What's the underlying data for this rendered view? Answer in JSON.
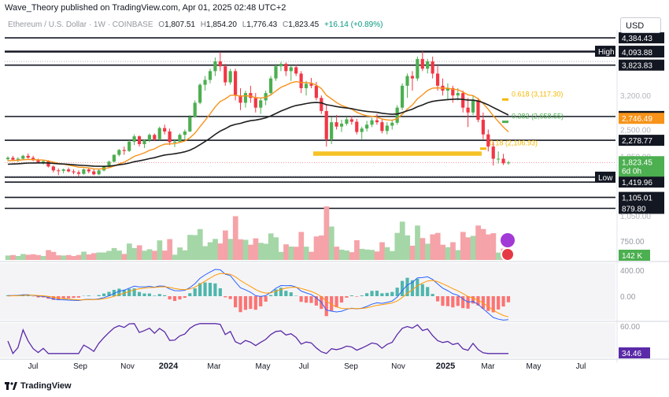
{
  "header": {
    "publisher": "Wave_Theory published on TradingView.com, Apr 01, 2025 02:48 UTC+2",
    "symbol": "Ethereum / U.S. Dollar · 1W · COINBASE",
    "open_label": "O",
    "open": "1,807.51",
    "high_label": "H",
    "high": "1,854.20",
    "low_label": "L",
    "low": "1,776.43",
    "close_label": "C",
    "close": "1,823.45",
    "change": "+16.14 (+0.89%)"
  },
  "currency_button": "USD",
  "footer": {
    "brand": "TradingView"
  },
  "colors": {
    "up": "#4caf50",
    "down": "#f23645",
    "ema50": "#f7931a",
    "ema200": "#1e1e1e",
    "macd": "#2962ff",
    "signal": "#ff9800",
    "rsi": "#5b2aa8",
    "fib": "#f5b800",
    "price_badge": "#4caf50",
    "volume_up": "#a5d6a7",
    "volume_down": "#f5a3a8"
  },
  "chart_data": {
    "type": "candlestick",
    "time_axis": [
      "Jul",
      "Sep",
      "Nov",
      "2024",
      "Mar",
      "May",
      "Jul",
      "Sep",
      "Nov",
      "2025",
      "Mar",
      "May",
      "Jul"
    ],
    "price_scale_ticks": [
      "1,950.00",
      "2,500.00",
      "3,200.00",
      "1,950.00"
    ],
    "candles": [
      {
        "o": 1890,
        "h": 1950,
        "l": 1850,
        "c": 1920
      },
      {
        "o": 1920,
        "h": 1960,
        "l": 1860,
        "c": 1880
      },
      {
        "o": 1880,
        "h": 1930,
        "l": 1830,
        "c": 1900
      },
      {
        "o": 1900,
        "h": 1980,
        "l": 1880,
        "c": 1960
      },
      {
        "o": 1960,
        "h": 2010,
        "l": 1900,
        "c": 1920
      },
      {
        "o": 1920,
        "h": 1960,
        "l": 1850,
        "c": 1870
      },
      {
        "o": 1870,
        "h": 1900,
        "l": 1800,
        "c": 1830
      },
      {
        "o": 1830,
        "h": 1880,
        "l": 1780,
        "c": 1850
      },
      {
        "o": 1850,
        "h": 1870,
        "l": 1720,
        "c": 1740
      },
      {
        "o": 1740,
        "h": 1760,
        "l": 1620,
        "c": 1660
      },
      {
        "o": 1660,
        "h": 1700,
        "l": 1560,
        "c": 1650
      },
      {
        "o": 1650,
        "h": 1700,
        "l": 1600,
        "c": 1680
      },
      {
        "o": 1680,
        "h": 1720,
        "l": 1620,
        "c": 1640
      },
      {
        "o": 1640,
        "h": 1680,
        "l": 1580,
        "c": 1620
      },
      {
        "o": 1620,
        "h": 1660,
        "l": 1540,
        "c": 1590
      },
      {
        "o": 1590,
        "h": 1700,
        "l": 1570,
        "c": 1680
      },
      {
        "o": 1680,
        "h": 1720,
        "l": 1600,
        "c": 1640
      },
      {
        "o": 1640,
        "h": 1690,
        "l": 1560,
        "c": 1580
      },
      {
        "o": 1580,
        "h": 1680,
        "l": 1560,
        "c": 1660
      },
      {
        "o": 1660,
        "h": 1760,
        "l": 1640,
        "c": 1740
      },
      {
        "o": 1740,
        "h": 1860,
        "l": 1720,
        "c": 1840
      },
      {
        "o": 1840,
        "h": 1990,
        "l": 1820,
        "c": 1980
      },
      {
        "o": 1980,
        "h": 2100,
        "l": 1950,
        "c": 2080
      },
      {
        "o": 2080,
        "h": 2150,
        "l": 1980,
        "c": 2060
      },
      {
        "o": 2060,
        "h": 2280,
        "l": 2040,
        "c": 2250
      },
      {
        "o": 2250,
        "h": 2400,
        "l": 2180,
        "c": 2360
      },
      {
        "o": 2360,
        "h": 2380,
        "l": 2150,
        "c": 2200
      },
      {
        "o": 2200,
        "h": 2300,
        "l": 2120,
        "c": 2280
      },
      {
        "o": 2280,
        "h": 2420,
        "l": 2240,
        "c": 2390
      },
      {
        "o": 2390,
        "h": 2420,
        "l": 2260,
        "c": 2300
      },
      {
        "o": 2300,
        "h": 2560,
        "l": 2280,
        "c": 2530
      },
      {
        "o": 2530,
        "h": 2600,
        "l": 2400,
        "c": 2460
      },
      {
        "o": 2460,
        "h": 2520,
        "l": 2180,
        "c": 2240
      },
      {
        "o": 2240,
        "h": 2300,
        "l": 2140,
        "c": 2250
      },
      {
        "o": 2250,
        "h": 2420,
        "l": 2230,
        "c": 2390
      },
      {
        "o": 2390,
        "h": 2500,
        "l": 2290,
        "c": 2460
      },
      {
        "o": 2460,
        "h": 2800,
        "l": 2450,
        "c": 2760
      },
      {
        "o": 2760,
        "h": 3100,
        "l": 2740,
        "c": 3050
      },
      {
        "o": 3050,
        "h": 3450,
        "l": 3020,
        "c": 3420
      },
      {
        "o": 3420,
        "h": 3600,
        "l": 3300,
        "c": 3520
      },
      {
        "o": 3520,
        "h": 3750,
        "l": 3450,
        "c": 3700
      },
      {
        "o": 3700,
        "h": 3980,
        "l": 3600,
        "c": 3900
      },
      {
        "o": 3900,
        "h": 4093,
        "l": 3700,
        "c": 3800
      },
      {
        "o": 3800,
        "h": 3850,
        "l": 3400,
        "c": 3470
      },
      {
        "o": 3470,
        "h": 3750,
        "l": 3420,
        "c": 3700
      },
      {
        "o": 3700,
        "h": 3750,
        "l": 3100,
        "c": 3200
      },
      {
        "o": 3200,
        "h": 3350,
        "l": 2900,
        "c": 3050
      },
      {
        "o": 3050,
        "h": 3300,
        "l": 2950,
        "c": 3250
      },
      {
        "o": 3250,
        "h": 3400,
        "l": 3050,
        "c": 3150
      },
      {
        "o": 3150,
        "h": 3250,
        "l": 2850,
        "c": 2950
      },
      {
        "o": 2950,
        "h": 3150,
        "l": 2820,
        "c": 3100
      },
      {
        "o": 3100,
        "h": 3300,
        "l": 3000,
        "c": 3250
      },
      {
        "o": 3250,
        "h": 3600,
        "l": 3200,
        "c": 3550
      },
      {
        "o": 3550,
        "h": 3850,
        "l": 3500,
        "c": 3800
      },
      {
        "o": 3800,
        "h": 3890,
        "l": 3700,
        "c": 3850
      },
      {
        "o": 3850,
        "h": 3880,
        "l": 3600,
        "c": 3700
      },
      {
        "o": 3700,
        "h": 3820,
        "l": 3500,
        "c": 3780
      },
      {
        "o": 3780,
        "h": 3830,
        "l": 3600,
        "c": 3650
      },
      {
        "o": 3650,
        "h": 3700,
        "l": 3250,
        "c": 3350
      },
      {
        "o": 3350,
        "h": 3500,
        "l": 3200,
        "c": 3440
      },
      {
        "o": 3440,
        "h": 3560,
        "l": 3350,
        "c": 3400
      },
      {
        "o": 3400,
        "h": 3480,
        "l": 3100,
        "c": 3150
      },
      {
        "o": 3150,
        "h": 3200,
        "l": 2820,
        "c": 2880
      },
      {
        "o": 2880,
        "h": 3000,
        "l": 2150,
        "c": 2300
      },
      {
        "o": 2300,
        "h": 2750,
        "l": 2200,
        "c": 2650
      },
      {
        "o": 2650,
        "h": 2800,
        "l": 2500,
        "c": 2560
      },
      {
        "o": 2560,
        "h": 2700,
        "l": 2450,
        "c": 2620
      },
      {
        "o": 2620,
        "h": 2750,
        "l": 2580,
        "c": 2710
      },
      {
        "o": 2710,
        "h": 2780,
        "l": 2600,
        "c": 2660
      },
      {
        "o": 2660,
        "h": 2720,
        "l": 2400,
        "c": 2450
      },
      {
        "o": 2450,
        "h": 2560,
        "l": 2300,
        "c": 2520
      },
      {
        "o": 2520,
        "h": 2680,
        "l": 2460,
        "c": 2600
      },
      {
        "o": 2600,
        "h": 2740,
        "l": 2550,
        "c": 2690
      },
      {
        "o": 2690,
        "h": 2820,
        "l": 2600,
        "c": 2650
      },
      {
        "o": 2650,
        "h": 2720,
        "l": 2420,
        "c": 2470
      },
      {
        "o": 2470,
        "h": 2650,
        "l": 2400,
        "c": 2580
      },
      {
        "o": 2580,
        "h": 2700,
        "l": 2500,
        "c": 2640
      },
      {
        "o": 2640,
        "h": 3000,
        "l": 2600,
        "c": 2950
      },
      {
        "o": 2950,
        "h": 3450,
        "l": 2900,
        "c": 3400
      },
      {
        "o": 3400,
        "h": 3650,
        "l": 3150,
        "c": 3600
      },
      {
        "o": 3600,
        "h": 3700,
        "l": 3300,
        "c": 3550
      },
      {
        "o": 3550,
        "h": 4000,
        "l": 3500,
        "c": 3950
      },
      {
        "o": 3950,
        "h": 4109,
        "l": 3700,
        "c": 3750
      },
      {
        "o": 3750,
        "h": 3950,
        "l": 3650,
        "c": 3900
      },
      {
        "o": 3900,
        "h": 4000,
        "l": 3550,
        "c": 3650
      },
      {
        "o": 3650,
        "h": 3800,
        "l": 3300,
        "c": 3400
      },
      {
        "o": 3400,
        "h": 3550,
        "l": 3200,
        "c": 3300
      },
      {
        "o": 3300,
        "h": 3450,
        "l": 3100,
        "c": 3350
      },
      {
        "o": 3350,
        "h": 3400,
        "l": 3050,
        "c": 3200
      },
      {
        "o": 3200,
        "h": 3350,
        "l": 3100,
        "c": 3250
      },
      {
        "o": 3250,
        "h": 3300,
        "l": 2850,
        "c": 2950
      },
      {
        "o": 2950,
        "h": 3150,
        "l": 2550,
        "c": 2850
      },
      {
        "o": 2850,
        "h": 3200,
        "l": 2800,
        "c": 3100
      },
      {
        "o": 3100,
        "h": 3150,
        "l": 2650,
        "c": 2700
      },
      {
        "o": 2700,
        "h": 2850,
        "l": 2300,
        "c": 2400
      },
      {
        "o": 2400,
        "h": 2500,
        "l": 2050,
        "c": 2150
      },
      {
        "o": 2150,
        "h": 2250,
        "l": 1760,
        "c": 1900
      },
      {
        "o": 1900,
        "h": 2050,
        "l": 1800,
        "c": 1900
      },
      {
        "o": 1900,
        "h": 2000,
        "l": 1770,
        "c": 1807
      },
      {
        "o": 1807.51,
        "h": 1854.2,
        "l": 1776.43,
        "c": 1823.45
      }
    ],
    "levels": [
      {
        "label": "4,384.43",
        "price": 4384.43
      },
      {
        "label": "4,109.00",
        "price": 4109.0,
        "tag": "High"
      },
      {
        "label": "4,093.88",
        "price": 4093.88
      },
      {
        "label": "3,823.83",
        "price": 3823.83
      },
      {
        "label": "2,768.22",
        "price": 2768.22
      },
      {
        "label": "2,278.77",
        "price": 2278.77
      },
      {
        "label": "1,520.85",
        "price": 1520.85,
        "tag": "Low"
      },
      {
        "label": "1,419.96",
        "price": 1419.96
      },
      {
        "label": "1,105.01",
        "price": 1105.01
      },
      {
        "label": "879.80",
        "price": 879.8
      }
    ],
    "ema50_label": "2,746.49",
    "current_price": "1,823.45",
    "countdown": "6d 0h",
    "fib_levels": [
      {
        "label": "0.618 (3,117.30)",
        "price": 3117.3
      },
      {
        "label": "0.382 (2,658.55)",
        "price": 2658.55
      },
      {
        "label": "0.18 (2,106.93)",
        "price": 2106.93
      }
    ],
    "volume_ticks": [
      "1,050.00",
      "750.00"
    ],
    "volume_value": "142 K",
    "macd_ticks": [
      "400.00",
      "0.00"
    ],
    "rsi_ticks": [
      "60.00"
    ],
    "rsi_value": "34.46"
  }
}
